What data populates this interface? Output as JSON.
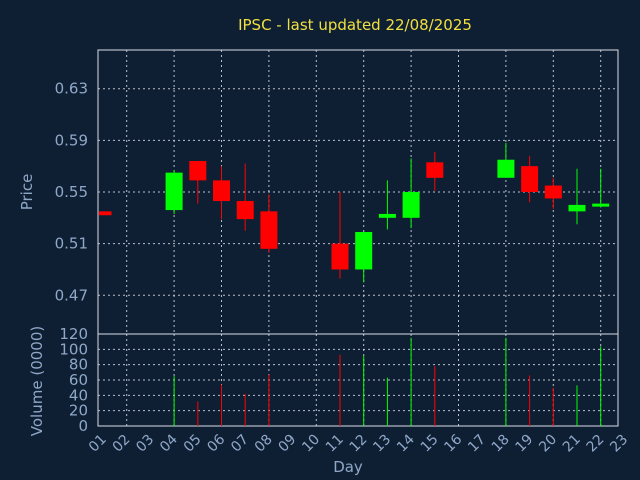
{
  "chart_data": {
    "type": "candlestick",
    "title": "IPSC - last updated 22/08/2025",
    "xlabel": "Day",
    "price_panel": {
      "ylabel": "Price",
      "ylim": [
        0.44,
        0.66
      ],
      "yticks": [
        "0.47",
        "0.51",
        "0.55",
        "0.59",
        "0.63"
      ]
    },
    "volume_panel": {
      "ylabel": "Volume (0000)",
      "ylim": [
        0,
        120
      ],
      "yticks": [
        "0",
        "20",
        "40",
        "60",
        "80",
        "100",
        "120"
      ]
    },
    "x_ticks": [
      "01",
      "02",
      "03",
      "04",
      "05",
      "06",
      "07",
      "08",
      "09",
      "10",
      "11",
      "12",
      "13",
      "14",
      "15",
      "16",
      "17",
      "18",
      "19",
      "20",
      "21",
      "22",
      "23"
    ],
    "grid": true,
    "colors": {
      "up": "#00ff00",
      "down": "#ff0000",
      "background": "#0f1f33",
      "title": "#f0e040",
      "axis_text": "#8fa8c8"
    },
    "candles": [
      {
        "day": 1,
        "open": 0.535,
        "high": 0.535,
        "low": 0.532,
        "close": 0.532,
        "volume": 0
      },
      {
        "day": 4,
        "open": 0.536,
        "high": 0.567,
        "low": 0.533,
        "close": 0.565,
        "volume": 65
      },
      {
        "day": 5,
        "open": 0.574,
        "high": 0.574,
        "low": 0.541,
        "close": 0.559,
        "volume": 32
      },
      {
        "day": 6,
        "open": 0.559,
        "high": 0.57,
        "low": 0.529,
        "close": 0.543,
        "volume": 54
      },
      {
        "day": 7,
        "open": 0.543,
        "high": 0.572,
        "low": 0.52,
        "close": 0.529,
        "volume": 42
      },
      {
        "day": 8,
        "open": 0.535,
        "high": 0.548,
        "low": 0.503,
        "close": 0.506,
        "volume": 67
      },
      {
        "day": 11,
        "open": 0.51,
        "high": 0.55,
        "low": 0.483,
        "close": 0.49,
        "volume": 93
      },
      {
        "day": 12,
        "open": 0.49,
        "high": 0.519,
        "low": 0.48,
        "close": 0.519,
        "volume": 92
      },
      {
        "day": 13,
        "open": 0.53,
        "high": 0.559,
        "low": 0.521,
        "close": 0.533,
        "volume": 63
      },
      {
        "day": 14,
        "open": 0.53,
        "high": 0.576,
        "low": 0.522,
        "close": 0.55,
        "volume": 115
      },
      {
        "day": 15,
        "open": 0.573,
        "high": 0.581,
        "low": 0.551,
        "close": 0.561,
        "volume": 78
      },
      {
        "day": 18,
        "open": 0.561,
        "high": 0.588,
        "low": 0.561,
        "close": 0.575,
        "volume": 115
      },
      {
        "day": 19,
        "open": 0.57,
        "high": 0.578,
        "low": 0.542,
        "close": 0.55,
        "volume": 66
      },
      {
        "day": 20,
        "open": 0.555,
        "high": 0.561,
        "low": 0.537,
        "close": 0.545,
        "volume": 50
      },
      {
        "day": 21,
        "open": 0.535,
        "high": 0.568,
        "low": 0.525,
        "close": 0.54,
        "volume": 53
      },
      {
        "day": 22,
        "open": 0.54,
        "high": 0.568,
        "low": 0.538,
        "close": 0.541,
        "volume": 104
      }
    ]
  }
}
